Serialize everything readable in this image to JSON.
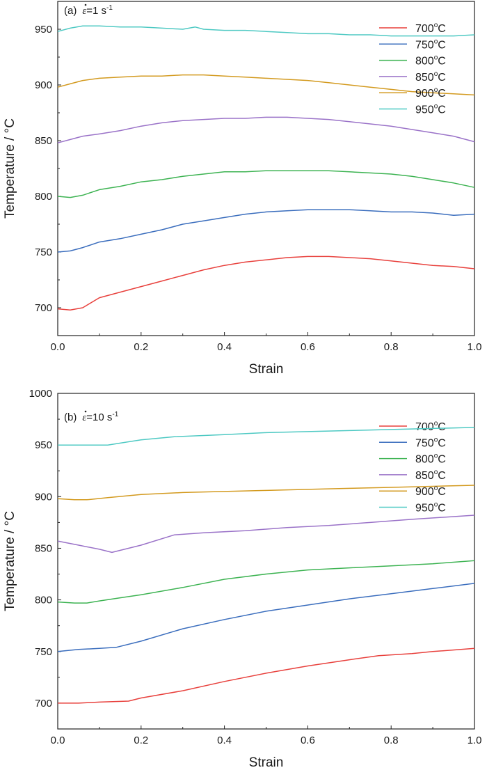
{
  "chart_data": [
    {
      "type": "line",
      "panel_label": "(a)",
      "strain_rate": "ε̇=1 s-1",
      "strain_rate_symbol": "ε",
      "strain_rate_value": "=1 s",
      "strain_rate_exp": "-1",
      "xlabel": "Strain",
      "ylabel": "Temperature / °C",
      "xlim": [
        0,
        1
      ],
      "ylim": [
        675,
        975
      ],
      "xticks": [
        "0.0",
        "0.2",
        "0.4",
        "0.6",
        "0.8",
        "1.0"
      ],
      "yticks": [
        "700",
        "750",
        "800",
        "850",
        "900",
        "950"
      ],
      "legend_position": "top-right",
      "series": [
        {
          "name": "700°C",
          "label_main": "700",
          "label_sup": "o",
          "label_unit": "C",
          "color": "#e8403c",
          "x": [
            0,
            0.03,
            0.06,
            0.1,
            0.15,
            0.2,
            0.25,
            0.3,
            0.35,
            0.4,
            0.45,
            0.5,
            0.55,
            0.6,
            0.65,
            0.7,
            0.75,
            0.8,
            0.85,
            0.9,
            0.95,
            1.0
          ],
          "y": [
            699,
            698,
            700,
            709,
            714,
            719,
            724,
            729,
            734,
            738,
            741,
            743,
            745,
            746,
            746,
            745,
            744,
            742,
            740,
            738,
            737,
            735
          ]
        },
        {
          "name": "750°C",
          "label_main": "750",
          "label_sup": "o",
          "label_unit": "C",
          "color": "#3a6dbd",
          "x": [
            0,
            0.03,
            0.06,
            0.1,
            0.15,
            0.2,
            0.25,
            0.3,
            0.35,
            0.4,
            0.45,
            0.5,
            0.55,
            0.6,
            0.65,
            0.7,
            0.75,
            0.8,
            0.85,
            0.9,
            0.95,
            1.0
          ],
          "y": [
            750,
            751,
            754,
            759,
            762,
            766,
            770,
            775,
            778,
            781,
            784,
            786,
            787,
            788,
            788,
            788,
            787,
            786,
            786,
            785,
            783,
            784
          ]
        },
        {
          "name": "800°C",
          "label_main": "800",
          "label_sup": "o",
          "label_unit": "C",
          "color": "#3db352",
          "x": [
            0,
            0.03,
            0.06,
            0.1,
            0.15,
            0.2,
            0.25,
            0.3,
            0.35,
            0.4,
            0.45,
            0.5,
            0.55,
            0.6,
            0.65,
            0.7,
            0.75,
            0.8,
            0.85,
            0.9,
            0.95,
            1.0
          ],
          "y": [
            800,
            799,
            801,
            806,
            809,
            813,
            815,
            818,
            820,
            822,
            822,
            823,
            823,
            823,
            823,
            822,
            821,
            820,
            818,
            815,
            812,
            808
          ]
        },
        {
          "name": "850°C",
          "label_main": "850",
          "label_sup": "o",
          "label_unit": "C",
          "color": "#9a72c8",
          "x": [
            0,
            0.03,
            0.06,
            0.1,
            0.15,
            0.2,
            0.25,
            0.3,
            0.35,
            0.4,
            0.45,
            0.5,
            0.55,
            0.6,
            0.65,
            0.7,
            0.75,
            0.8,
            0.85,
            0.9,
            0.95,
            1.0
          ],
          "y": [
            848,
            851,
            854,
            856,
            859,
            863,
            866,
            868,
            869,
            870,
            870,
            871,
            871,
            870,
            869,
            867,
            865,
            863,
            860,
            857,
            854,
            849
          ]
        },
        {
          "name": "900°C",
          "label_main": "900",
          "label_sup": "o",
          "label_unit": "C",
          "color": "#d39a1f",
          "x": [
            0,
            0.03,
            0.06,
            0.1,
            0.15,
            0.2,
            0.25,
            0.3,
            0.35,
            0.4,
            0.45,
            0.5,
            0.55,
            0.6,
            0.65,
            0.7,
            0.75,
            0.8,
            0.85,
            0.9,
            0.95,
            1.0
          ],
          "y": [
            898,
            901,
            904,
            906,
            907,
            908,
            908,
            909,
            909,
            908,
            907,
            906,
            905,
            904,
            902,
            900,
            898,
            896,
            894,
            893,
            892,
            891
          ]
        },
        {
          "name": "950°C",
          "label_main": "950",
          "label_sup": "o",
          "label_unit": "C",
          "color": "#4ec9c3",
          "x": [
            0,
            0.03,
            0.06,
            0.1,
            0.15,
            0.2,
            0.25,
            0.3,
            0.33,
            0.35,
            0.4,
            0.45,
            0.5,
            0.55,
            0.6,
            0.65,
            0.7,
            0.75,
            0.8,
            0.85,
            0.9,
            0.95,
            1.0
          ],
          "y": [
            948,
            951,
            953,
            953,
            952,
            952,
            951,
            950,
            952,
            950,
            949,
            949,
            948,
            947,
            946,
            946,
            945,
            945,
            944,
            944,
            944,
            944,
            945
          ]
        }
      ]
    },
    {
      "type": "line",
      "panel_label": "(b)",
      "strain_rate": "ε̇=10 s-1",
      "strain_rate_symbol": "ε",
      "strain_rate_value": "=10 s",
      "strain_rate_exp": "-1",
      "xlabel": "Strain",
      "ylabel": "Temperature / °C",
      "xlim": [
        0,
        1
      ],
      "ylim": [
        675,
        1000
      ],
      "xticks": [
        "0.0",
        "0.2",
        "0.4",
        "0.6",
        "0.8",
        "1.0"
      ],
      "yticks": [
        "700",
        "750",
        "800",
        "850",
        "900",
        "950",
        "1000"
      ],
      "legend_position": "top-right",
      "series": [
        {
          "name": "700°C",
          "label_main": "700",
          "label_sup": "o",
          "label_unit": "C",
          "color": "#e8403c",
          "x": [
            0,
            0.05,
            0.1,
            0.17,
            0.2,
            0.3,
            0.4,
            0.5,
            0.6,
            0.7,
            0.77,
            0.85,
            0.9,
            1.0
          ],
          "y": [
            700,
            700,
            701,
            702,
            705,
            712,
            721,
            729,
            736,
            742,
            746,
            748,
            750,
            753
          ]
        },
        {
          "name": "750°C",
          "label_main": "750",
          "label_sup": "o",
          "label_unit": "C",
          "color": "#3a6dbd",
          "x": [
            0,
            0.05,
            0.1,
            0.14,
            0.2,
            0.3,
            0.4,
            0.5,
            0.6,
            0.7,
            0.8,
            0.9,
            1.0
          ],
          "y": [
            750,
            752,
            753,
            754,
            760,
            772,
            781,
            789,
            795,
            801,
            806,
            811,
            816
          ]
        },
        {
          "name": "800°C",
          "label_main": "800",
          "label_sup": "o",
          "label_unit": "C",
          "color": "#3db352",
          "x": [
            0,
            0.04,
            0.07,
            0.1,
            0.15,
            0.2,
            0.3,
            0.4,
            0.5,
            0.6,
            0.7,
            0.8,
            0.9,
            1.0
          ],
          "y": [
            798,
            797,
            797,
            799,
            802,
            805,
            812,
            820,
            825,
            829,
            831,
            833,
            835,
            838
          ]
        },
        {
          "name": "850°C",
          "label_main": "850",
          "label_sup": "o",
          "label_unit": "C",
          "color": "#9a72c8",
          "x": [
            0,
            0.05,
            0.1,
            0.13,
            0.2,
            0.28,
            0.35,
            0.45,
            0.55,
            0.65,
            0.75,
            0.85,
            1.0
          ],
          "y": [
            857,
            853,
            849,
            846,
            853,
            863,
            865,
            867,
            870,
            872,
            875,
            878,
            882
          ]
        },
        {
          "name": "900°C",
          "label_main": "900",
          "label_sup": "o",
          "label_unit": "C",
          "color": "#d39a1f",
          "x": [
            0,
            0.04,
            0.07,
            0.12,
            0.2,
            0.3,
            0.4,
            0.5,
            0.6,
            0.7,
            0.8,
            0.9,
            1.0
          ],
          "y": [
            898,
            897,
            897,
            899,
            902,
            904,
            905,
            906,
            907,
            908,
            909,
            910,
            911
          ]
        },
        {
          "name": "950°C",
          "label_main": "950",
          "label_sup": "o",
          "label_unit": "C",
          "color": "#4ec9c3",
          "x": [
            0,
            0.05,
            0.12,
            0.2,
            0.28,
            0.4,
            0.5,
            0.6,
            0.7,
            0.8,
            0.9,
            1.0
          ],
          "y": [
            950,
            950,
            950,
            955,
            958,
            960,
            962,
            963,
            964,
            965,
            966,
            967
          ]
        }
      ]
    }
  ]
}
